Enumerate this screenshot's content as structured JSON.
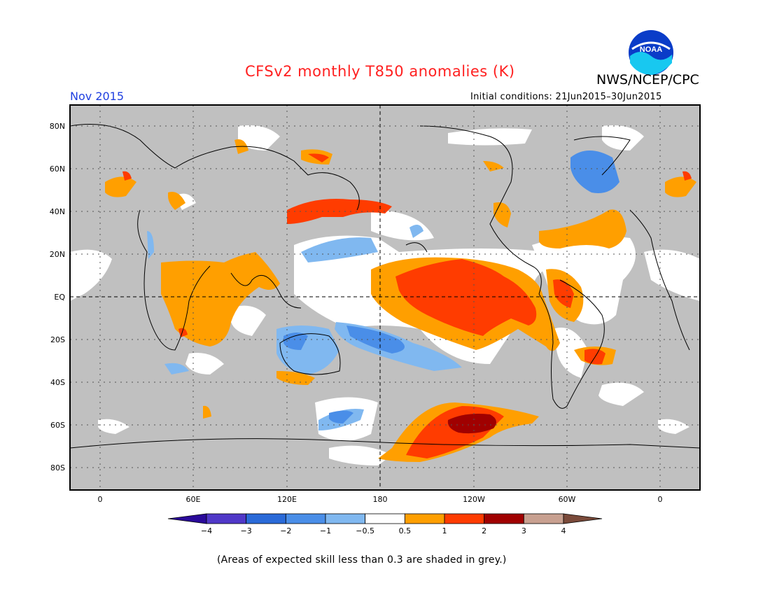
{
  "title": "CFSv2 monthly T850 anomalies (K)",
  "agency": "NWS/NCEP/CPC",
  "logo_text": "NOAA",
  "month": "Nov 2015",
  "initial_conditions": "Initial conditions: 21Jun2015–30Jun2015",
  "footnote": "(Areas of expected skill less than 0.3 are shaded in grey.)",
  "lat_labels": [
    "80N",
    "60N",
    "40N",
    "20N",
    "EQ",
    "20S",
    "40S",
    "60S",
    "80S"
  ],
  "lon_labels": [
    "0",
    "60E",
    "120E",
    "180",
    "120W",
    "60W",
    "0"
  ],
  "colorbar": {
    "ticks": [
      "−4",
      "−3",
      "−2",
      "−1",
      "−0.5",
      "0.5",
      "1",
      "2",
      "3",
      "4"
    ],
    "colors": [
      "#2a0a9a",
      "#5038c8",
      "#2a6ad8",
      "#4a8ee8",
      "#80b8f0",
      "#ffffff",
      "#ff9f00",
      "#ff3c00",
      "#a00000",
      "#c8a090",
      "#7a4a3a"
    ]
  },
  "palette": {
    "skill_grey": "#c0c0c0",
    "title_red": "#ff2020",
    "month_blue": "#2040e0"
  }
}
